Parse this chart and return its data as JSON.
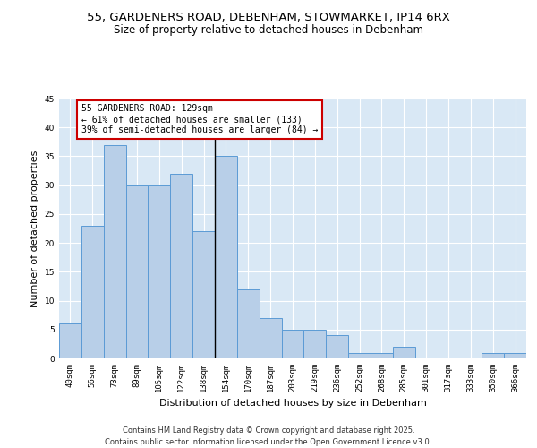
{
  "title_line1": "55, GARDENERS ROAD, DEBENHAM, STOWMARKET, IP14 6RX",
  "title_line2": "Size of property relative to detached houses in Debenham",
  "xlabel": "Distribution of detached houses by size in Debenham",
  "ylabel": "Number of detached properties",
  "categories": [
    "40sqm",
    "56sqm",
    "73sqm",
    "89sqm",
    "105sqm",
    "122sqm",
    "138sqm",
    "154sqm",
    "170sqm",
    "187sqm",
    "203sqm",
    "219sqm",
    "236sqm",
    "252sqm",
    "268sqm",
    "285sqm",
    "301sqm",
    "317sqm",
    "333sqm",
    "350sqm",
    "366sqm"
  ],
  "values": [
    6,
    23,
    37,
    30,
    30,
    32,
    22,
    35,
    12,
    7,
    5,
    5,
    4,
    1,
    1,
    2,
    0,
    0,
    0,
    1,
    1
  ],
  "bar_color": "#b8cfe8",
  "bar_edge_color": "#5b9bd5",
  "vline_x": 6.5,
  "annotation_text": "55 GARDENERS ROAD: 129sqm\n← 61% of detached houses are smaller (133)\n39% of semi-detached houses are larger (84) →",
  "annotation_box_facecolor": "#ffffff",
  "annotation_box_edgecolor": "#cc0000",
  "ylim": [
    0,
    45
  ],
  "yticks": [
    0,
    5,
    10,
    15,
    20,
    25,
    30,
    35,
    40,
    45
  ],
  "background_color": "#d9e8f5",
  "footer_text": "Contains HM Land Registry data © Crown copyright and database right 2025.\nContains public sector information licensed under the Open Government Licence v3.0.",
  "title_fontsize": 9.5,
  "subtitle_fontsize": 8.5,
  "axis_label_fontsize": 8,
  "tick_fontsize": 6.5,
  "annotation_fontsize": 7,
  "footer_fontsize": 6
}
